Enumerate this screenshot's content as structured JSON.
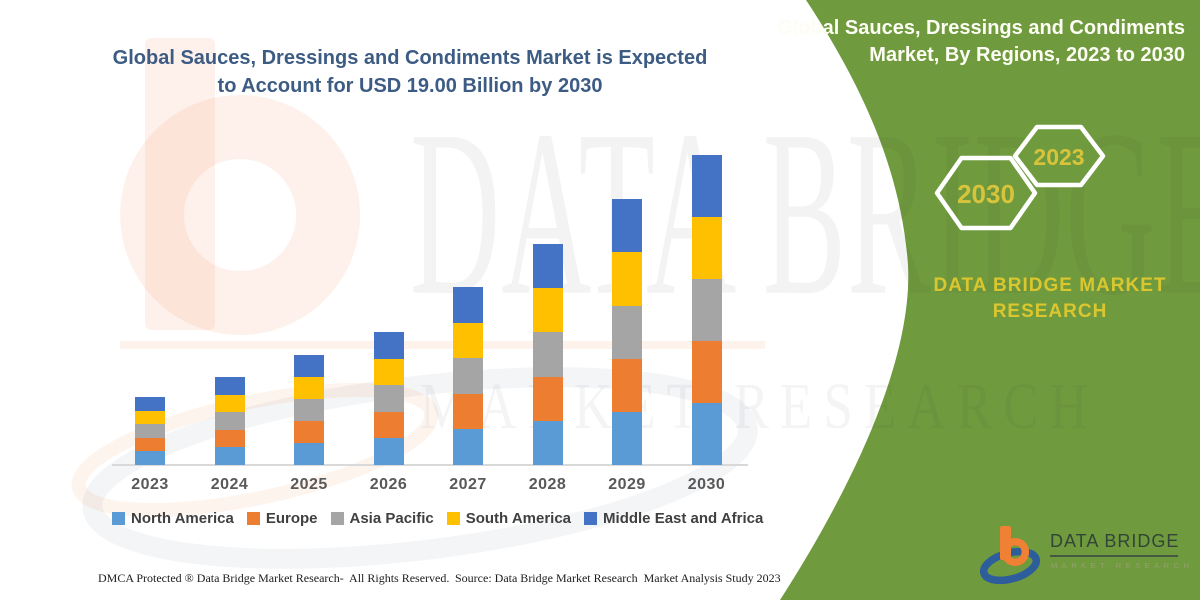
{
  "colors": {
    "panel_green": "#6f9a3d",
    "title_blue": "#3d5c84",
    "axis_label_gray": "#595959",
    "legend_text_gray": "#404040",
    "hex_year_yellow": "#d8c43c",
    "brand_yellow": "#dac72f",
    "logo_orange": "#ef8034",
    "logo_blue": "#2e5d9c",
    "logo_text_dark": "#324538"
  },
  "chart": {
    "title_line1": "Global Sauces, Dressings and Condiments Market is Expected",
    "title_line2": "to Account for USD 19.00 Billion by 2030"
  },
  "chart_data": {
    "type": "bar",
    "stacked": true,
    "title": "Global Sauces, Dressings and Condiments Market is Expected to Account for USD 19.00 Billion by 2030",
    "unit": "USD Billion",
    "categories": [
      "2023",
      "2024",
      "2025",
      "2026",
      "2027",
      "2028",
      "2029",
      "2030"
    ],
    "series": [
      {
        "name": "North America",
        "color": "#5B9BD5",
        "values": [
          0.83,
          1.08,
          1.35,
          1.63,
          2.18,
          2.71,
          3.26,
          3.8
        ]
      },
      {
        "name": "Europe",
        "color": "#ED7D31",
        "values": [
          0.83,
          1.08,
          1.35,
          1.63,
          2.18,
          2.71,
          3.26,
          3.8
        ]
      },
      {
        "name": "Asia Pacific",
        "color": "#A5A5A5",
        "values": [
          0.83,
          1.08,
          1.35,
          1.63,
          2.18,
          2.71,
          3.26,
          3.8
        ]
      },
      {
        "name": "South America",
        "color": "#FFC000",
        "values": [
          0.83,
          1.08,
          1.35,
          1.63,
          2.18,
          2.71,
          3.26,
          3.8
        ]
      },
      {
        "name": "Middle East and Africa",
        "color": "#4472C4",
        "values": [
          0.83,
          1.08,
          1.35,
          1.63,
          2.18,
          2.71,
          3.26,
          3.8
        ]
      }
    ],
    "totals": [
      4.15,
      5.4,
      6.75,
      8.15,
      10.9,
      13.55,
      16.3,
      19.0
    ],
    "ylim": [
      0,
      19
    ],
    "grid": false,
    "legend_position": "bottom"
  },
  "side_panel": {
    "title_line1": "Global Sauces, Dressings and Condiments",
    "title_line2": "Market, By Regions, 2023 to 2030",
    "hexagons": [
      {
        "label": "2030"
      },
      {
        "label": "2023"
      }
    ],
    "brand_line1": "DATA BRIDGE MARKET",
    "brand_line2": "RESEARCH"
  },
  "watermark": {
    "brand": "DATA BRIDGE",
    "sub": "MARKET RESEARCH"
  },
  "logo": {
    "name": "DATA BRIDGE",
    "tagline": "MARKET RESEARCH"
  },
  "footer": {
    "left": "DMCA Protected ® Data Bridge Market Research-  All Rights Reserved.",
    "right": "Source: Data Bridge Market Research  Market Analysis Study 2023"
  }
}
